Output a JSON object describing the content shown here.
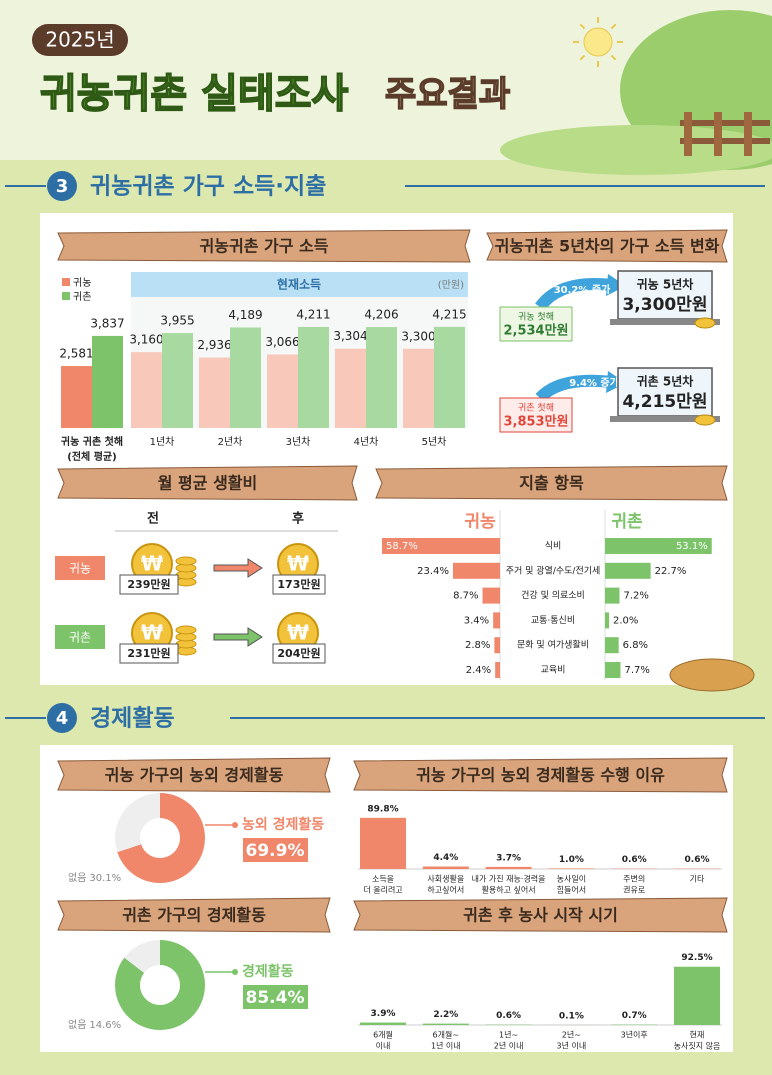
{
  "header": {
    "year": "2025년",
    "title": "귀농귀촌 실태조사",
    "subtitle": "주요결과"
  },
  "section3": {
    "number": "3",
    "title": "귀농귀촌 가구 소득·지출",
    "income": {
      "type": "bar",
      "title": "귀농귀촌 가구 소득",
      "band_label": "현재소득",
      "unit": "(만원)",
      "categories": [
        [
          "귀농 귀촌 첫해",
          "(전체 평균)"
        ],
        [
          "1년차"
        ],
        [
          "2년차"
        ],
        [
          "3년차"
        ],
        [
          "4년차"
        ],
        [
          "5년차"
        ]
      ],
      "series": [
        {
          "name": "귀농",
          "color": "#f0876a",
          "light_color": "#f8c8bb",
          "values": [
            2581,
            3160,
            2936,
            3066,
            3304,
            3300
          ],
          "value_labels": [
            "2,581",
            "3,160",
            "2,936",
            "3,066",
            "3,304",
            "3,300"
          ]
        },
        {
          "name": "귀촌",
          "color": "#7cc36a",
          "light_color": "#a8d9a0",
          "values": [
            3837,
            3955,
            4189,
            4211,
            4206,
            4215
          ],
          "value_labels": [
            "3,837",
            "3,955",
            "4,189",
            "4,211",
            "4,206",
            "4,215"
          ]
        }
      ]
    },
    "change": {
      "title": "귀농귀촌 5년차의 가구 소득 변화",
      "items": [
        {
          "start_label": "귀농 첫해",
          "start_value": "2,534만원",
          "rate": "30.2% 증가",
          "end_label": "귀농 5년차",
          "end_value": "3,300만원"
        },
        {
          "start_label": "귀촌 첫해",
          "start_value": "3,853만원",
          "rate": "9.4% 증가",
          "end_label": "귀촌 5년차",
          "end_value": "4,215만원"
        }
      ]
    },
    "living": {
      "title": "월 평균 생활비",
      "before": "전",
      "after": "후",
      "currency_symbol": "₩",
      "rows": [
        {
          "label": "귀농",
          "before": "239만원",
          "after": "173만원"
        },
        {
          "label": "귀촌",
          "before": "231만원",
          "after": "204만원"
        }
      ]
    },
    "spending": {
      "type": "bar",
      "title": "지출 항목",
      "categories": [
        "식비",
        "주거 및 광열/수도/전기세",
        "건강 및 의료소비",
        "교통·통신비",
        "문화 및 여가생활비",
        "교육비"
      ],
      "series": [
        {
          "name": "귀농",
          "color": "#f0876a",
          "values": [
            58.7,
            23.4,
            8.7,
            3.4,
            2.8,
            2.4
          ],
          "value_labels": [
            "58.7%",
            "23.4%",
            "8.7%",
            "3.4%",
            "2.8%",
            "2.4%"
          ]
        },
        {
          "name": "귀촌",
          "color": "#7cc36a",
          "values": [
            53.1,
            22.7,
            7.2,
            2.0,
            6.8,
            7.7
          ],
          "value_labels": [
            "53.1%",
            "22.7%",
            "7.2%",
            "2.0%",
            "6.8%",
            "7.7%"
          ]
        }
      ]
    }
  },
  "section4": {
    "number": "4",
    "title": "경제활동",
    "farm_return": {
      "type": "pie",
      "title": "귀농 가구의 농외 경제활동",
      "categories": [
        "농외 경제활동",
        "없음"
      ],
      "values": [
        69.9,
        30.1
      ],
      "value_labels": [
        "69.9%",
        "30.1%"
      ],
      "colors": [
        "#f0876a",
        "#eeeeee"
      ]
    },
    "reasons": {
      "type": "bar",
      "title": "귀농 가구의 농외 경제활동 수행 이유",
      "color": "#f0876a",
      "categories": [
        [
          "소득을",
          "더 올리려고"
        ],
        [
          "사회생활을",
          "하고싶어서"
        ],
        [
          "내가 가진 재능·경력을",
          "활용하고 싶어서"
        ],
        [
          "농사일이",
          "힘들어서"
        ],
        [
          "주변의",
          "권유로"
        ],
        [
          "기타"
        ]
      ],
      "values": [
        89.8,
        4.4,
        3.7,
        1.0,
        0.6,
        0.6
      ],
      "value_labels": [
        "89.8%",
        "4.4%",
        "3.7%",
        "1.0%",
        "0.6%",
        "0.6%"
      ]
    },
    "rural_return": {
      "type": "pie",
      "title": "귀촌 가구의 경제활동",
      "categories": [
        "경제활동",
        "없음"
      ],
      "values": [
        85.4,
        14.6
      ],
      "value_labels": [
        "85.4%",
        "14.6%"
      ],
      "colors": [
        "#7cc36a",
        "#eeeeee"
      ]
    },
    "farming_start": {
      "type": "bar",
      "title": "귀촌 후 농사 시작 시기",
      "color": "#7cc36a",
      "categories": [
        [
          "6개월",
          "이내"
        ],
        [
          "6개월~",
          "1년 이내"
        ],
        [
          "1년~",
          "2년 이내"
        ],
        [
          "2년~",
          "3년 이내"
        ],
        [
          "3년이후"
        ],
        [
          "현재",
          "농사짓지 않음"
        ]
      ],
      "values": [
        3.9,
        2.2,
        0.6,
        0.1,
        0.7,
        92.5
      ],
      "value_labels": [
        "3.9%",
        "2.2%",
        "0.6%",
        "0.1%",
        "0.7%",
        "92.5%"
      ]
    }
  }
}
